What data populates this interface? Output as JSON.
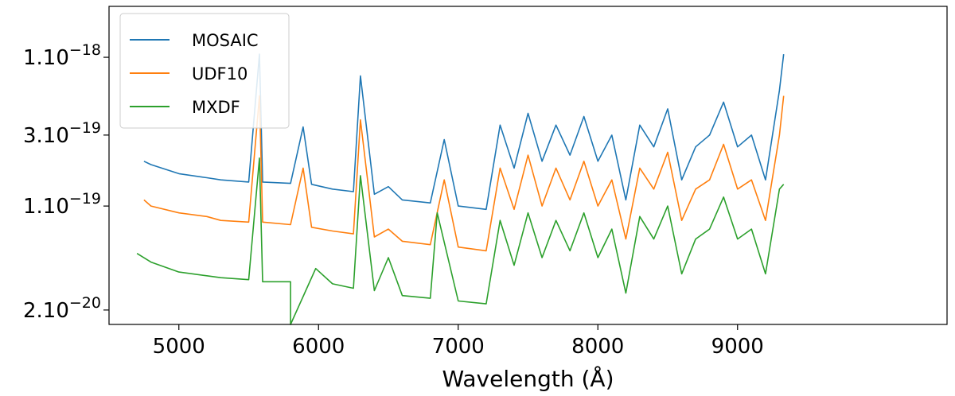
{
  "chart_data": {
    "type": "line",
    "title": "",
    "xlabel": "Wavelength (Å)",
    "ylabel": "",
    "xlim": [
      4500,
      10500
    ],
    "ylim": [
      1.6e-20,
      2.2e-18
    ],
    "yscale": "log",
    "x_ticks": [
      {
        "value": 5000,
        "label": "5000"
      },
      {
        "value": 6000,
        "label": "6000"
      },
      {
        "value": 7000,
        "label": "7000"
      },
      {
        "value": 8000,
        "label": "8000"
      },
      {
        "value": 9000,
        "label": "9000"
      }
    ],
    "y_ticks": [
      {
        "value": 1e-18,
        "mantissa": "1.10",
        "exponent": "−18"
      },
      {
        "value": 3e-19,
        "mantissa": "3.10",
        "exponent": "−19"
      },
      {
        "value": 1e-19,
        "mantissa": "1.10",
        "exponent": "−19"
      },
      {
        "value": 2e-20,
        "mantissa": "2.10",
        "exponent": "−20"
      }
    ],
    "legend_position": "top-left",
    "series": [
      {
        "name": "MOSAIC",
        "color": "#1f77b4",
        "x": [
          4750,
          4800,
          5000,
          5200,
          5300,
          5500,
          5577,
          5600,
          5800,
          5890,
          5950,
          6100,
          6250,
          6300,
          6400,
          6500,
          6600,
          6800,
          6900,
          7000,
          7200,
          7300,
          7400,
          7500,
          7600,
          7700,
          7800,
          7900,
          8000,
          8100,
          8200,
          8300,
          8400,
          8500,
          8600,
          8700,
          8800,
          8900,
          9000,
          9100,
          9200,
          9300,
          9330
        ],
        "y": [
          2e-19,
          1.9e-19,
          1.65e-19,
          1.55e-19,
          1.5e-19,
          1.45e-19,
          1.05e-18,
          1.45e-19,
          1.42e-19,
          3.4e-19,
          1.4e-19,
          1.3e-19,
          1.25e-19,
          7.5e-19,
          1.2e-19,
          1.35e-19,
          1.1e-19,
          1.05e-19,
          2.8e-19,
          1e-19,
          9.5e-20,
          3.5e-19,
          1.8e-19,
          4.2e-19,
          2e-19,
          3.5e-19,
          2.2e-19,
          4e-19,
          2e-19,
          3e-19,
          1.1e-19,
          3.5e-19,
          2.5e-19,
          4.5e-19,
          1.5e-19,
          2.5e-19,
          3e-19,
          5e-19,
          2.5e-19,
          3e-19,
          1.5e-19,
          6e-19,
          1.05e-18
        ]
      },
      {
        "name": "UDF10",
        "color": "#ff7f0e",
        "x": [
          4750,
          4800,
          5000,
          5200,
          5300,
          5500,
          5577,
          5600,
          5800,
          5890,
          5950,
          6100,
          6250,
          6300,
          6400,
          6500,
          6600,
          6800,
          6900,
          7000,
          7200,
          7300,
          7400,
          7500,
          7600,
          7700,
          7800,
          7900,
          8000,
          8100,
          8200,
          8300,
          8400,
          8500,
          8600,
          8700,
          8800,
          8900,
          9000,
          9100,
          9200,
          9300,
          9330
        ],
        "y": [
          1.1e-19,
          1e-19,
          9e-20,
          8.5e-20,
          8e-20,
          7.8e-20,
          5.5e-19,
          7.8e-20,
          7.5e-20,
          1.8e-19,
          7.2e-20,
          6.8e-20,
          6.5e-20,
          3.8e-19,
          6.2e-20,
          7e-20,
          5.8e-20,
          5.5e-20,
          1.5e-19,
          5.3e-20,
          5e-20,
          1.8e-19,
          9.5e-20,
          2.2e-19,
          1e-19,
          1.8e-19,
          1.1e-19,
          2e-19,
          1e-19,
          1.5e-19,
          6e-20,
          1.8e-19,
          1.3e-19,
          2.3e-19,
          8e-20,
          1.3e-19,
          1.5e-19,
          2.6e-19,
          1.3e-19,
          1.5e-19,
          8e-20,
          3e-19,
          5.5e-19
        ]
      },
      {
        "name": "MXDF",
        "color": "#2ca02c",
        "x": [
          4700,
          4800,
          5000,
          5200,
          5300,
          5500,
          5577,
          5600,
          5700,
          5800,
          5800,
          5980,
          6100,
          6250,
          6300,
          6400,
          6500,
          6600,
          6800,
          6850,
          7000,
          7200,
          7300,
          7400,
          7500,
          7600,
          7700,
          7800,
          7900,
          8000,
          8100,
          8200,
          8300,
          8400,
          8500,
          8600,
          8700,
          8800,
          8900,
          9000,
          9100,
          9200,
          9300,
          9330
        ],
        "y": [
          4.8e-20,
          4.2e-20,
          3.6e-20,
          3.4e-20,
          3.3e-20,
          3.2e-20,
          2.1e-19,
          3.1e-20,
          3.1e-20,
          3.1e-20,
          1.6e-20,
          3.8e-20,
          3e-20,
          2.8e-20,
          1.6e-19,
          2.7e-20,
          4.5e-20,
          2.5e-20,
          2.4e-20,
          9e-20,
          2.3e-20,
          2.2e-20,
          8e-20,
          4e-20,
          9e-20,
          4.5e-20,
          8e-20,
          5e-20,
          9e-20,
          4.5e-20,
          7e-20,
          2.6e-20,
          8.5e-20,
          6e-20,
          1e-19,
          3.5e-20,
          6e-20,
          7e-20,
          1.15e-19,
          6e-20,
          7e-20,
          3.5e-20,
          1.3e-19,
          1.4e-19
        ]
      }
    ]
  }
}
